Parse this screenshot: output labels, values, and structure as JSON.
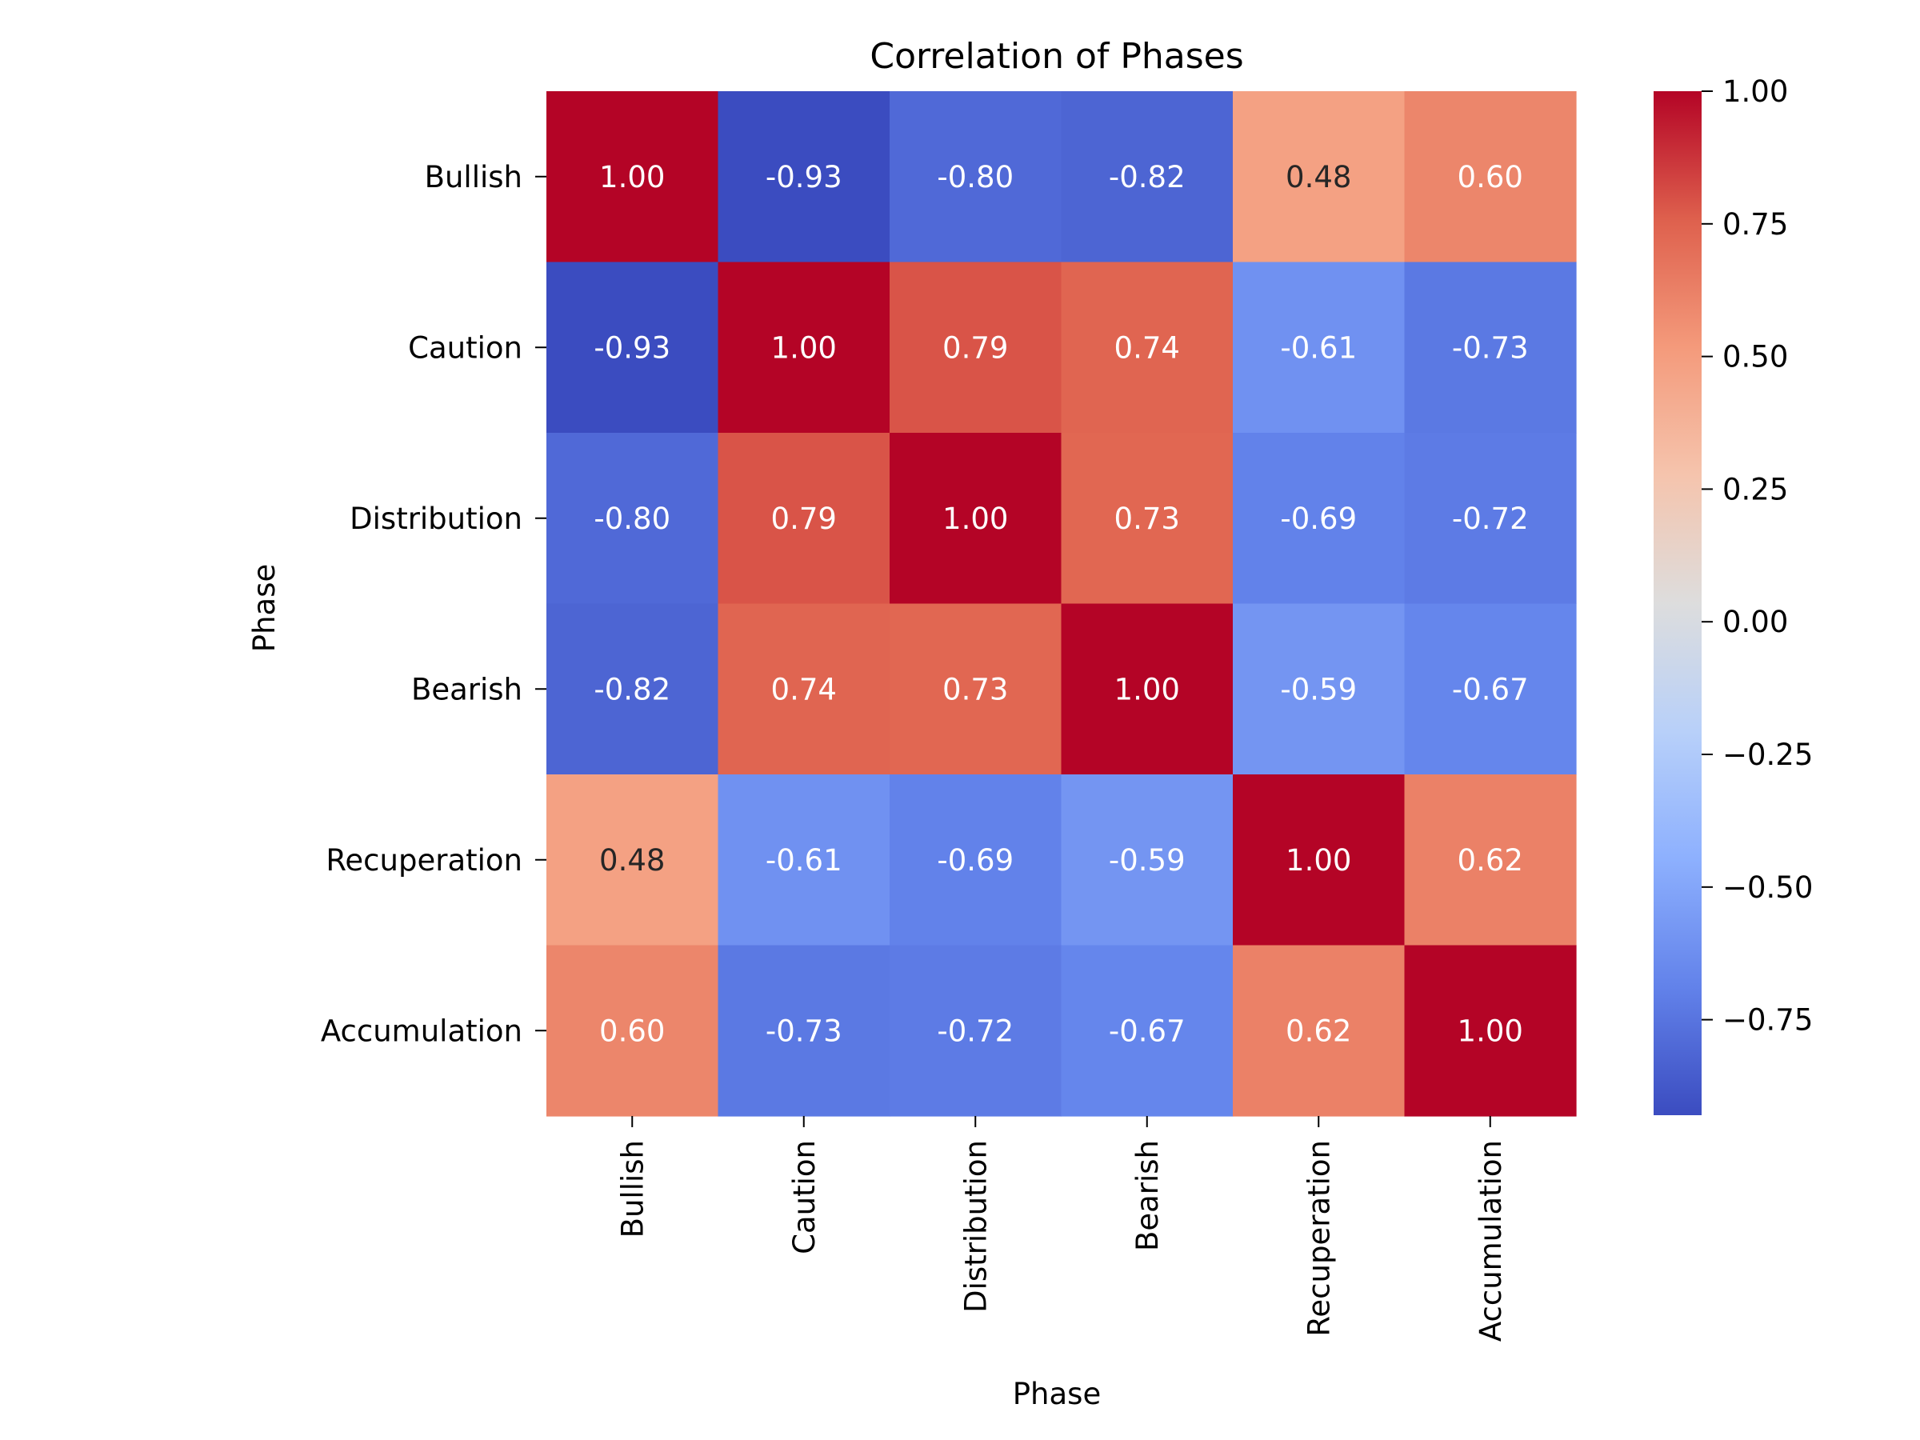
{
  "chart_data": {
    "type": "heatmap",
    "title": "Correlation of Phases",
    "xlabel": "Phase",
    "ylabel": "Phase",
    "x_categories": [
      "Bullish",
      "Caution",
      "Distribution",
      "Bearish",
      "Recuperation",
      "Accumulation"
    ],
    "y_categories": [
      "Bullish",
      "Caution",
      "Distribution",
      "Bearish",
      "Recuperation",
      "Accumulation"
    ],
    "values": [
      [
        1.0,
        -0.93,
        -0.8,
        -0.82,
        0.48,
        0.6
      ],
      [
        -0.93,
        1.0,
        0.79,
        0.74,
        -0.61,
        -0.73
      ],
      [
        -0.8,
        0.79,
        1.0,
        0.73,
        -0.69,
        -0.72
      ],
      [
        -0.82,
        0.74,
        0.73,
        1.0,
        -0.59,
        -0.67
      ],
      [
        0.48,
        -0.61,
        -0.69,
        -0.59,
        1.0,
        0.62
      ],
      [
        0.6,
        -0.73,
        -0.72,
        -0.67,
        0.62,
        1.0
      ]
    ],
    "annotation_format": "0.00",
    "colormap": "coolwarm",
    "colorbar": {
      "range": [
        -0.93,
        1.0
      ],
      "ticks": [
        1.0,
        0.75,
        0.5,
        0.25,
        0.0,
        -0.25,
        -0.5,
        -0.75
      ],
      "tick_labels": [
        "1.00",
        "0.75",
        "0.50",
        "0.25",
        "0.00",
        "−0.25",
        "−0.50",
        "−0.75"
      ]
    },
    "grid": false
  }
}
